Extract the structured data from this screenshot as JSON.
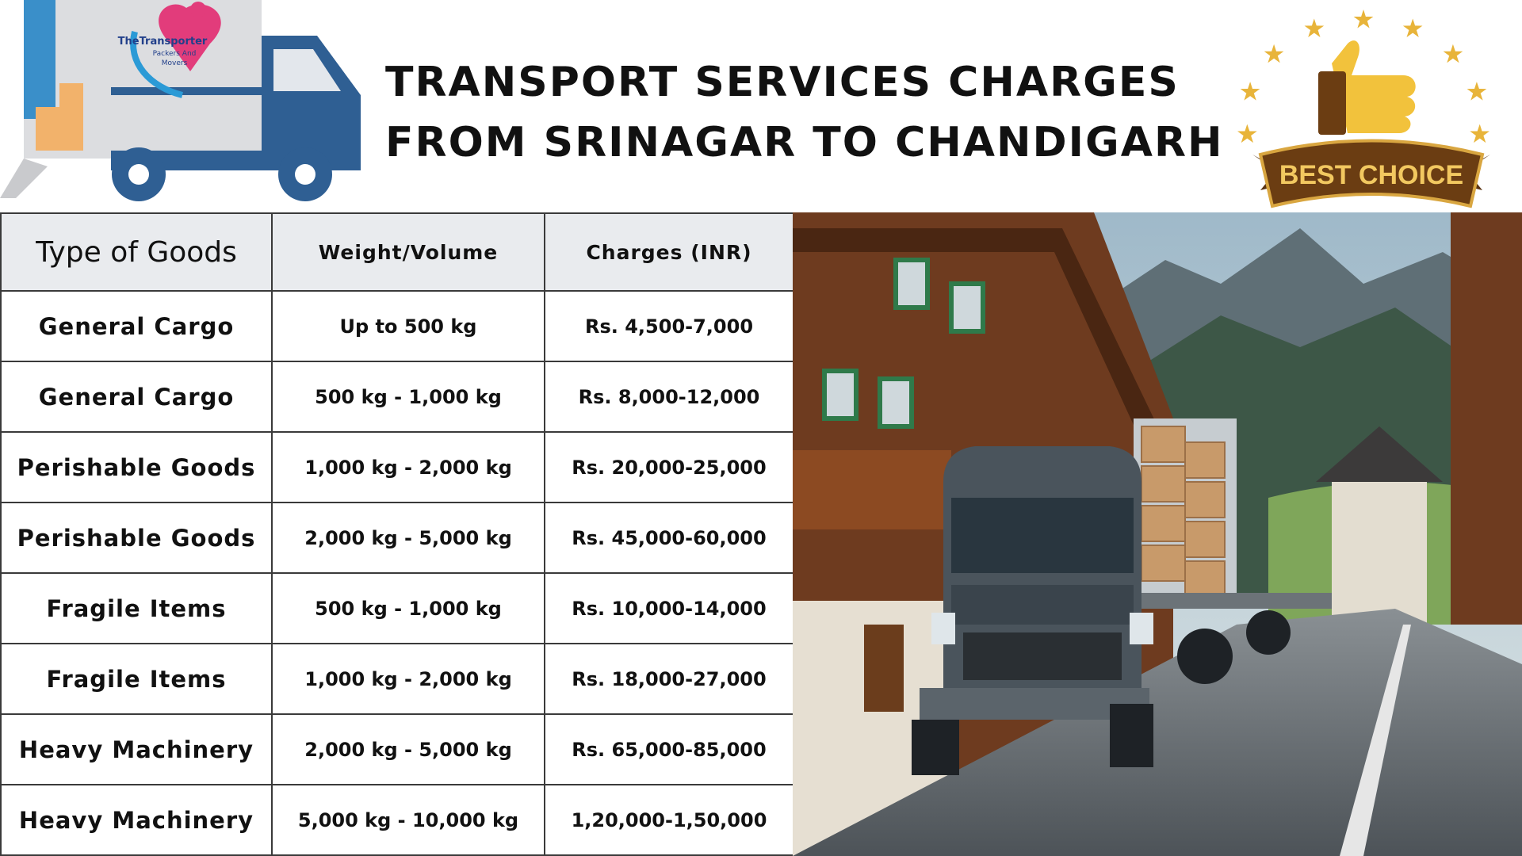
{
  "header": {
    "title": [
      "TRANSPORT SERVICES CHARGES",
      "FROM SRINAGAR TO CHANDIGARH"
    ],
    "logo": [
      "TheTransporter",
      "Packers And",
      "Movers"
    ],
    "badge": "BEST CHOICE"
  },
  "table": {
    "columns": [
      "Type of Goods",
      "Weight/Volume",
      "Charges (INR)"
    ],
    "rows": [
      [
        "General Cargo",
        "Up to 500 kg",
        "Rs. 4,500-7,000"
      ],
      [
        "General Cargo",
        "500 kg - 1,000 kg",
        "Rs. 8,000-12,000"
      ],
      [
        "Perishable Goods",
        "1,000 kg - 2,000 kg",
        "Rs. 20,000-25,000"
      ],
      [
        "Perishable Goods",
        "2,000 kg - 5,000 kg",
        "Rs.  45,000-60,000"
      ],
      [
        "Fragile Items",
        "500 kg - 1,000 kg",
        "Rs.  10,000-14,000"
      ],
      [
        "Fragile Items",
        "1,000 kg - 2,000 kg",
        "Rs. 18,000-27,000"
      ],
      [
        "Heavy Machinery",
        "2,000 kg - 5,000 kg",
        "Rs. 65,000-85,000"
      ],
      [
        "Heavy Machinery",
        "5,000 kg - 10,000 kg",
        "1,20,000-1,50,000"
      ]
    ]
  }
}
